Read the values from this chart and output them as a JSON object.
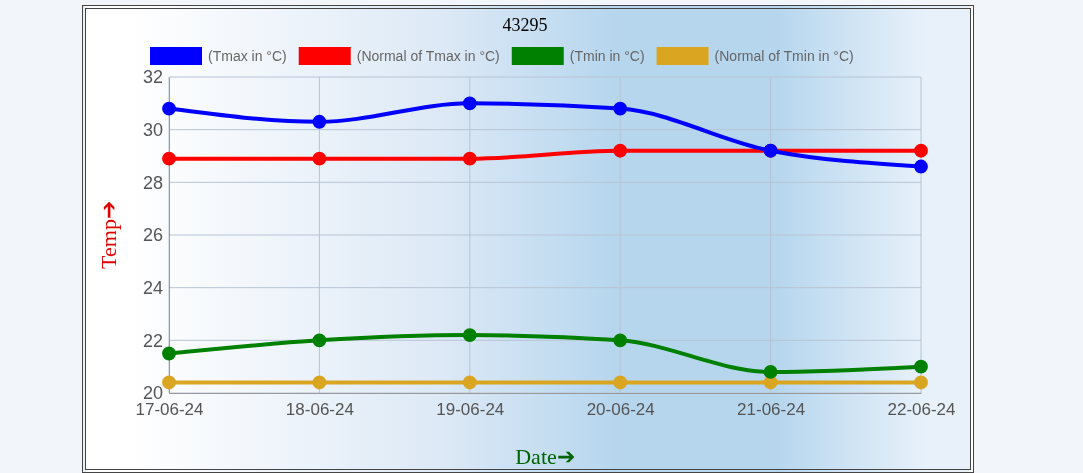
{
  "chart_data": {
    "type": "line",
    "title": "43295",
    "xlabel": "Date➔",
    "ylabel": "Temp➔",
    "categories": [
      "17-06-24",
      "18-06-24",
      "19-06-24",
      "20-06-24",
      "21-06-24",
      "22-06-24"
    ],
    "series": [
      {
        "name": "(Tmax in °C)",
        "color": "#0000ff",
        "values": [
          30.8,
          30.3,
          31.0,
          30.8,
          29.2,
          28.6
        ]
      },
      {
        "name": "(Normal of Tmax in °C)",
        "color": "#ff0000",
        "values": [
          28.9,
          28.9,
          28.9,
          29.2,
          29.2,
          29.2
        ]
      },
      {
        "name": "(Tmin in °C)",
        "color": "#008000",
        "values": [
          21.5,
          22.0,
          22.2,
          22.0,
          20.8,
          21.0
        ]
      },
      {
        "name": "(Normal of Tmin in °C)",
        "color": "#daa520",
        "values": [
          20.4,
          20.4,
          20.4,
          20.4,
          20.4,
          20.4
        ]
      }
    ],
    "ylim": [
      20,
      32
    ],
    "yticks": [
      20,
      22,
      24,
      26,
      28,
      30,
      32
    ],
    "grid": true,
    "legend": "top",
    "marker": "circle",
    "line_style": "solid"
  }
}
